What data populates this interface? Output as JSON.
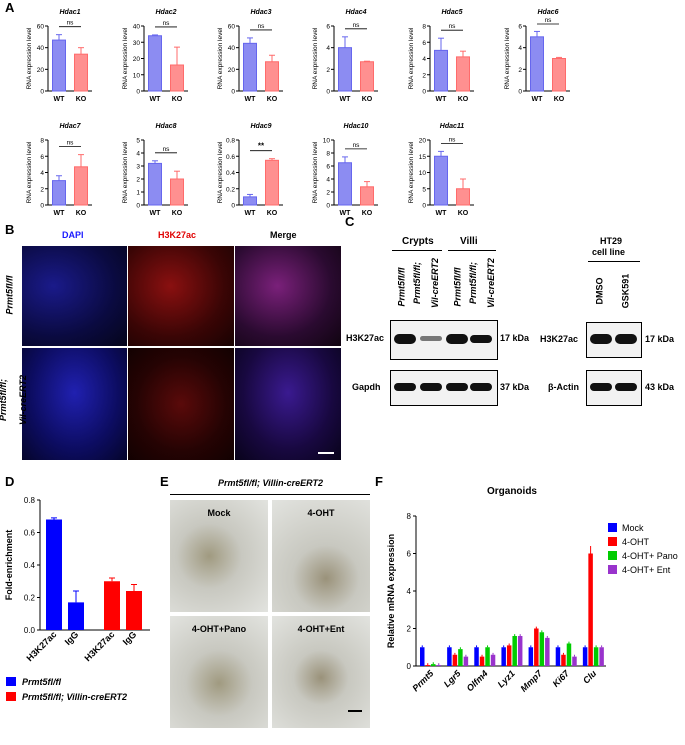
{
  "panel_labels": {
    "a": "A",
    "b": "B",
    "c": "C",
    "d": "D",
    "e": "E",
    "f": "F"
  },
  "panelA": {
    "ylabel": "RNA expression level",
    "groups": [
      "WT",
      "KO"
    ],
    "colors": {
      "wt": "#6666ee",
      "ko": "#ff6b6b"
    }
  },
  "chart_data": [
    {
      "type": "bar",
      "title": "Hdac1",
      "categories": [
        "WT",
        "KO"
      ],
      "values": [
        47,
        34
      ],
      "errors": [
        5,
        6
      ],
      "ylim": [
        0,
        60
      ],
      "yticks": [
        0,
        20,
        40,
        60
      ],
      "significance": "ns"
    },
    {
      "type": "bar",
      "title": "Hdac2",
      "categories": [
        "WT",
        "KO"
      ],
      "values": [
        34,
        16
      ],
      "errors": [
        0.5,
        11
      ],
      "ylim": [
        0,
        40
      ],
      "yticks": [
        0,
        10,
        20,
        30,
        40
      ],
      "significance": "ns"
    },
    {
      "type": "bar",
      "title": "Hdac3",
      "categories": [
        "WT",
        "KO"
      ],
      "values": [
        44,
        27
      ],
      "errors": [
        5,
        6
      ],
      "ylim": [
        0,
        60
      ],
      "yticks": [
        0,
        20,
        40,
        60
      ],
      "significance": "ns"
    },
    {
      "type": "bar",
      "title": "Hdac4",
      "categories": [
        "WT",
        "KO"
      ],
      "values": [
        4,
        2.7
      ],
      "errors": [
        1,
        0.05
      ],
      "ylim": [
        0,
        6
      ],
      "yticks": [
        0,
        2,
        4,
        6
      ],
      "significance": "ns"
    },
    {
      "type": "bar",
      "title": "Hdac5",
      "categories": [
        "WT",
        "KO"
      ],
      "values": [
        5,
        4.2
      ],
      "errors": [
        1.5,
        0.7
      ],
      "ylim": [
        0,
        8
      ],
      "yticks": [
        0,
        2,
        4,
        6,
        8
      ],
      "significance": "ns"
    },
    {
      "type": "bar",
      "title": "Hdac6",
      "categories": [
        "WT",
        "KO"
      ],
      "values": [
        5,
        3
      ],
      "errors": [
        0.5,
        0.1
      ],
      "ylim": [
        0,
        6
      ],
      "yticks": [
        0,
        2,
        4,
        6
      ],
      "significance": "ns"
    },
    {
      "type": "bar",
      "title": "Hdac7",
      "categories": [
        "WT",
        "KO"
      ],
      "values": [
        3,
        4.7
      ],
      "errors": [
        0.6,
        1.5
      ],
      "ylim": [
        0,
        8
      ],
      "yticks": [
        0,
        2,
        4,
        6,
        8
      ],
      "significance": "ns"
    },
    {
      "type": "bar",
      "title": "Hdac8",
      "categories": [
        "WT",
        "KO"
      ],
      "values": [
        3.2,
        2
      ],
      "errors": [
        0.2,
        0.6
      ],
      "ylim": [
        0,
        5
      ],
      "yticks": [
        0,
        1,
        2,
        3,
        4,
        5
      ],
      "significance": "ns"
    },
    {
      "type": "bar",
      "title": "Hdac9",
      "categories": [
        "WT",
        "KO"
      ],
      "values": [
        0.1,
        0.55
      ],
      "errors": [
        0.03,
        0.02
      ],
      "ylim": [
        0,
        0.8
      ],
      "yticks": [
        0,
        0.2,
        0.4,
        0.6,
        0.8
      ],
      "significance": "**"
    },
    {
      "type": "bar",
      "title": "Hdac10",
      "categories": [
        "WT",
        "KO"
      ],
      "values": [
        6.5,
        2.8
      ],
      "errors": [
        0.9,
        0.8
      ],
      "ylim": [
        0,
        10
      ],
      "yticks": [
        0,
        2,
        4,
        6,
        8,
        10
      ],
      "significance": "ns"
    },
    {
      "type": "bar",
      "title": "Hdac11",
      "categories": [
        "WT",
        "KO"
      ],
      "values": [
        15,
        5
      ],
      "errors": [
        1.5,
        3
      ],
      "ylim": [
        0,
        20
      ],
      "yticks": [
        0,
        5,
        10,
        15,
        20
      ],
      "significance": "ns"
    },
    {
      "type": "bar",
      "title": "",
      "ylabel": "Fold-enrichment",
      "categories": [
        "H3K27ac",
        "IgG",
        "H3K27ac",
        "IgG"
      ],
      "values": [
        0.68,
        0.17,
        0.3,
        0.24
      ],
      "errors": [
        0.01,
        0.07,
        0.02,
        0.04
      ],
      "ylim": [
        0,
        0.8
      ],
      "yticks": [
        0,
        0.2,
        0.4,
        0.6,
        0.8
      ],
      "series": [
        {
          "name": "Prmt5fl/fl",
          "color": "#0000ff"
        },
        {
          "name": "Prmt5fl/fl; Villin-creERT2",
          "color": "#ff0000"
        }
      ]
    },
    {
      "type": "bar",
      "title": "Organoids",
      "ylabel": "Relative mRNA expression",
      "ylim": [
        0,
        8
      ],
      "yticks": [
        0,
        2,
        4,
        6,
        8
      ],
      "categories": [
        "Prmt5",
        "Lgr5",
        "Olfm4",
        "Lyz1",
        "Mmp7",
        "Ki67",
        "Clu"
      ],
      "series": [
        {
          "name": "Mock",
          "color": "#0000ff",
          "values": [
            1,
            1,
            1,
            1,
            1,
            1,
            1
          ]
        },
        {
          "name": "4-OHT",
          "color": "#ff0000",
          "values": [
            0.05,
            0.6,
            0.5,
            1.1,
            2.0,
            0.6,
            6.0
          ]
        },
        {
          "name": "4-OHT+ Pano",
          "color": "#00cc00",
          "values": [
            0.1,
            0.9,
            1.0,
            1.6,
            1.8,
            1.2,
            1.0
          ]
        },
        {
          "name": "4-OHT+ Ent",
          "color": "#9933cc",
          "values": [
            0.05,
            0.5,
            0.6,
            1.6,
            1.5,
            0.5,
            1.0
          ]
        }
      ]
    }
  ],
  "panelB": {
    "headers": [
      "DAPI",
      "H3K27ac",
      "Merge"
    ],
    "row1": "Prmt5fl/fl",
    "row2a": "Prmt5fl/fl;",
    "row2b": "Vil-creERT2"
  },
  "panelC": {
    "crypts": "Crypts",
    "villi": "Villi",
    "lane1": "Prmt5fl/fl",
    "lane2a": "Prmt5fl/fl;",
    "lane2b": "Vil-creERT2",
    "ht29a": "HT29",
    "ht29b": "cell line",
    "dmso": "DMSO",
    "gsk": "GSK591",
    "h3k27ac": "H3K27ac",
    "gapdh": "Gapdh",
    "bactin": "β-Actin",
    "kda17": "17 kDa",
    "kda37": "37 kDa",
    "kda43": "43 kDa"
  },
  "panelE": {
    "title": "Prmt5fl/fl; Villin-creERT2",
    "mock": "Mock",
    "oht": "4-OHT",
    "pano": "4-OHT+Pano",
    "ent": "4-OHT+Ent"
  }
}
